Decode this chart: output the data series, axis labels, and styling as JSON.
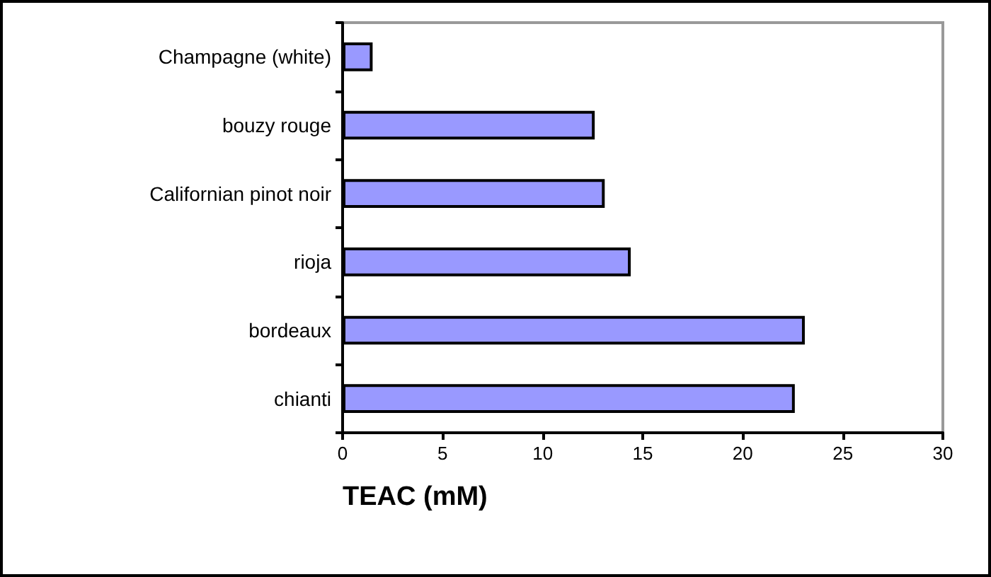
{
  "chart_data": {
    "type": "bar",
    "orientation": "horizontal",
    "xlabel": "TEAC (mM)",
    "categories": [
      "Champagne (white)",
      "bouzy rouge",
      "Californian pinot noir",
      "rioja",
      "bordeaux",
      "chianti"
    ],
    "values": [
      1.5,
      12.6,
      13.1,
      14.4,
      23.1,
      22.6
    ],
    "color": "#9999ff",
    "xlim": [
      0,
      30
    ],
    "xticks": [
      0,
      5,
      10,
      15,
      20,
      25,
      30
    ],
    "grid": false
  }
}
